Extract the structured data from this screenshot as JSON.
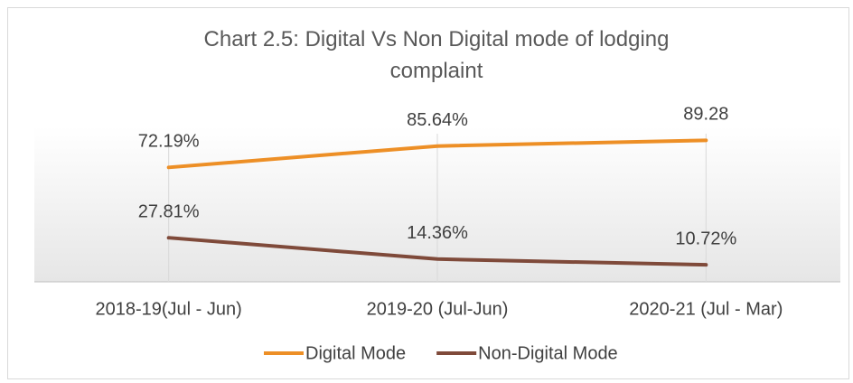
{
  "chart_data": {
    "type": "line",
    "title": "Chart 2.5: Digital Vs Non Digital mode of lodging complaint",
    "categories": [
      "2018-19(Jul - Jun)",
      "2019-20 (Jul-Jun)",
      "2020-21 (Jul - Mar)"
    ],
    "series": [
      {
        "name": "Digital Mode",
        "color": "#ed8f26",
        "values": [
          72.19,
          85.64,
          89.28
        ],
        "value_labels": [
          "72.19%",
          "85.64%",
          "89.28"
        ]
      },
      {
        "name": "Non-Digital Mode",
        "color": "#7f4a3a",
        "values": [
          27.81,
          14.36,
          10.72
        ],
        "value_labels": [
          "27.81%",
          "14.36%",
          "10.72%"
        ]
      }
    ],
    "ylim": [
      0,
      100
    ],
    "legend": "bottom"
  }
}
